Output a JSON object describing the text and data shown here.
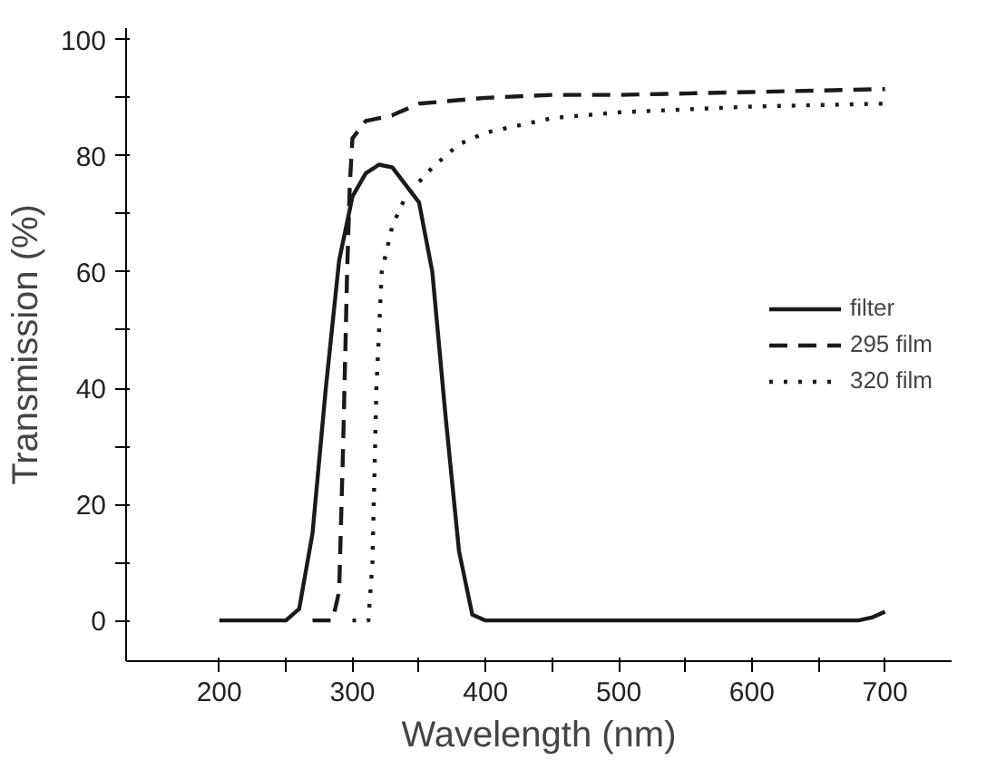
{
  "chart_data": {
    "type": "line",
    "xlabel": "Wavelength (nm)",
    "ylabel": "Transmission (%)",
    "xlim": [
      130,
      750
    ],
    "ylim": [
      -7,
      102
    ],
    "xticks": [
      200,
      {
        "value": 250,
        "label": null
      },
      300,
      {
        "value": 350,
        "label": null
      },
      400,
      {
        "value": 450,
        "label": null
      },
      500,
      {
        "value": 550,
        "label": null
      },
      600,
      {
        "value": 650,
        "label": null
      },
      700
    ],
    "yticks": [
      0,
      {
        "value": 10,
        "label": null
      },
      20,
      {
        "value": 30,
        "label": null
      },
      40,
      {
        "value": 50,
        "label": null
      },
      60,
      {
        "value": 70,
        "label": null
      },
      80,
      {
        "value": 90,
        "label": null
      },
      100
    ],
    "grid": false,
    "legend": "right",
    "marker": "none",
    "series": [
      {
        "name": "filter",
        "color": "#1a1a1a",
        "line_style": "solid",
        "x": [
          200,
          250,
          260,
          270,
          280,
          290,
          300,
          310,
          320,
          330,
          340,
          350,
          360,
          370,
          380,
          390,
          400,
          500,
          600,
          680,
          690,
          700
        ],
        "values": [
          0,
          0,
          2,
          15,
          40,
          62,
          73,
          77,
          78.5,
          78,
          75,
          72,
          60,
          35,
          12,
          1,
          0,
          0,
          0,
          0,
          0.5,
          1.5
        ]
      },
      {
        "name": "295 film",
        "color": "#1a1a1a",
        "line_style": "dashed",
        "x": [
          270,
          285,
          290,
          293,
          296,
          298,
          300,
          310,
          330,
          350,
          400,
          450,
          500,
          600,
          700
        ],
        "values": [
          0,
          0,
          5,
          30,
          60,
          75,
          83,
          86,
          87,
          89,
          90,
          90.5,
          90.5,
          91,
          91.5
        ]
      },
      {
        "name": "320 film",
        "color": "#1a1a1a",
        "line_style": "dotted",
        "x": [
          300,
          312,
          315,
          318,
          322,
          330,
          340,
          360,
          380,
          400,
          450,
          500,
          600,
          700
        ],
        "values": [
          0,
          0,
          10,
          40,
          60,
          68,
          73,
          78,
          82,
          84,
          86.5,
          87.5,
          88.5,
          89
        ]
      }
    ]
  }
}
